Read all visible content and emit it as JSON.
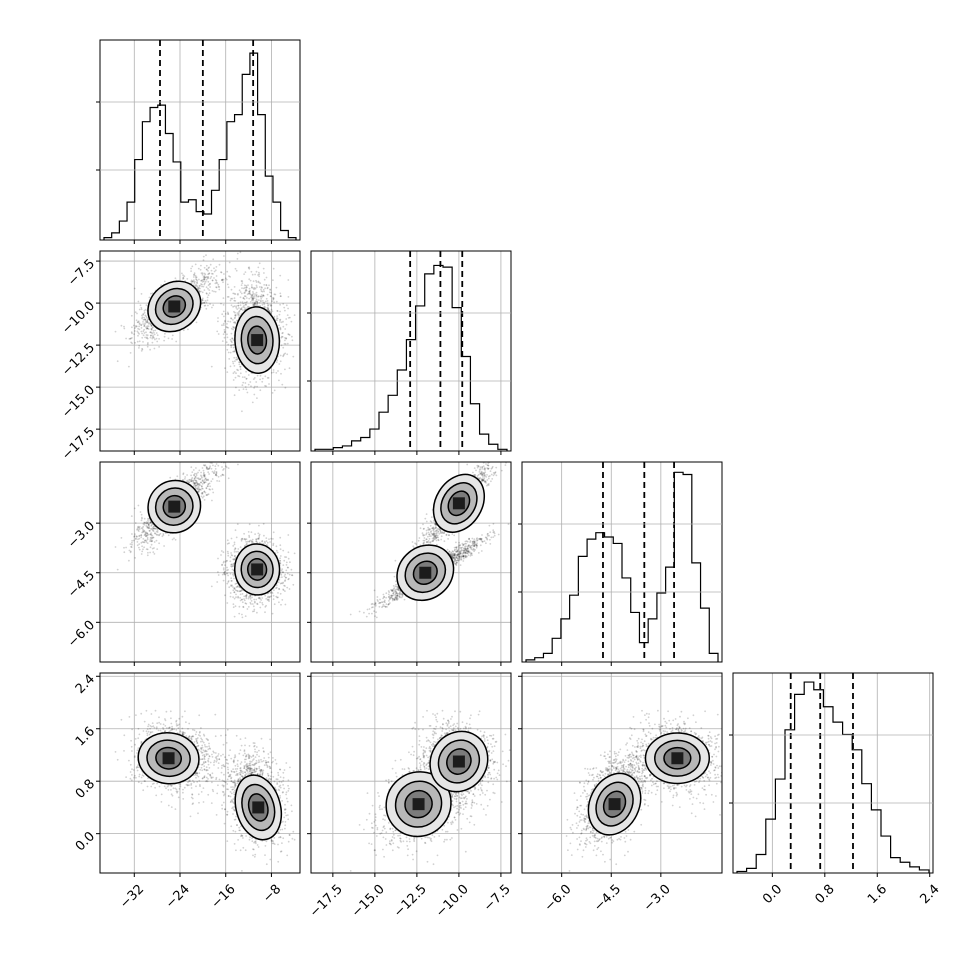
{
  "chart_data": {
    "type": "corner",
    "title": "",
    "parameters": [
      {
        "name": "",
        "range": [
          -38,
          -3
        ],
        "ticks": [
          -32,
          -24,
          -16,
          -8
        ],
        "tick_labels": [
          "−32",
          "−24",
          "−16",
          "−8"
        ]
      },
      {
        "name": "",
        "range": [
          -18.8,
          -6.9
        ],
        "ticks": [
          -17.5,
          -15.0,
          -12.5,
          -10.0,
          -7.5
        ],
        "tick_labels": [
          "−17.5",
          "−15.0",
          "−12.5",
          "−10.0",
          "−7.5"
        ]
      },
      {
        "name": "",
        "range": [
          -7.2,
          -1.15
        ],
        "ticks": [
          -6.0,
          -4.5,
          -3.0
        ],
        "tick_labels": [
          "−6.0",
          "−4.5",
          "−3.0"
        ]
      },
      {
        "name": "",
        "range": [
          -0.6,
          2.45
        ],
        "ticks": [
          0.0,
          0.8,
          1.6,
          2.4
        ],
        "tick_labels": [
          "0.0",
          "0.8",
          "1.6",
          "2.4"
        ]
      }
    ],
    "quantiles": [
      [
        -27.5,
        -20.0,
        -11.2
      ],
      [
        -12.9,
        -11.1,
        -9.8
      ],
      [
        -4.75,
        -3.5,
        -2.6
      ],
      [
        0.28,
        0.73,
        1.23
      ]
    ],
    "histograms": [
      {
        "counts": [
          1,
          3,
          8,
          16,
          34,
          50,
          56,
          57,
          45,
          33,
          16,
          17,
          12,
          11,
          21,
          34,
          50,
          53,
          70,
          79,
          53,
          27,
          16,
          4,
          1
        ],
        "max": 82
      },
      {
        "counts": [
          1,
          1,
          2,
          3,
          6,
          8,
          13,
          23,
          33,
          48,
          66,
          86,
          105,
          110,
          109,
          85,
          56,
          28,
          10,
          4,
          1
        ],
        "max": 115
      },
      {
        "counts": [
          1,
          2,
          4,
          11,
          20,
          31,
          49,
          57,
          60,
          58,
          55,
          39,
          23,
          9,
          20,
          32,
          44,
          88,
          87,
          46,
          25,
          4
        ],
        "max": 90
      },
      {
        "counts": [
          1,
          3,
          12,
          35,
          61,
          93,
          116,
          124,
          119,
          108,
          98,
          90,
          80,
          58,
          41,
          24,
          10,
          7,
          4,
          2
        ],
        "max": 126
      }
    ],
    "modes_2d": [
      {
        "params": [
          0,
          1
        ],
        "peaks": [
          [
            -25,
            -10.2
          ],
          [
            -10.5,
            -12.2
          ]
        ]
      },
      {
        "params": [
          0,
          2
        ],
        "peaks": [
          [
            -25,
            -2.5
          ],
          [
            -10.5,
            -4.4
          ]
        ]
      },
      {
        "params": [
          1,
          2
        ],
        "peaks": [
          [
            -10,
            -2.4
          ],
          [
            -12.0,
            -4.5
          ]
        ]
      },
      {
        "params": [
          0,
          3
        ],
        "peaks": [
          [
            -26,
            1.15
          ],
          [
            -10.3,
            0.4
          ]
        ]
      },
      {
        "params": [
          1,
          3
        ],
        "peaks": [
          [
            -12.4,
            0.45
          ],
          [
            -10.0,
            1.1
          ]
        ]
      },
      {
        "params": [
          2,
          3
        ],
        "peaks": [
          [
            -4.4,
            0.45
          ],
          [
            -2.5,
            1.15
          ]
        ]
      }
    ],
    "grid": true,
    "xlabel": "",
    "ylabel": ""
  }
}
